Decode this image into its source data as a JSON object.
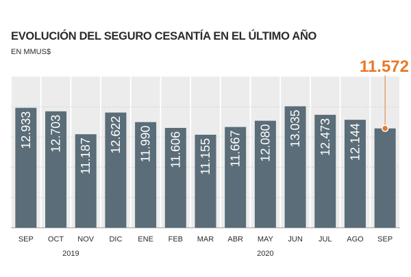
{
  "header": {
    "title": "EVOLUCIÓN DEL SEGURO CESANTÍA EN EL ÚLTIMO AÑO",
    "subtitle": "EN MMUS$"
  },
  "colors": {
    "bar": "#5a6d78",
    "panel": "#ececec",
    "grid": "#bcbcbc",
    "highlight": "#e8792b",
    "text": "#2b2b2b",
    "bar_label": "#ffffff"
  },
  "chart_data": {
    "type": "bar",
    "categories": [
      "SEP",
      "OCT",
      "NOV",
      "DIC",
      "ENE",
      "FEB",
      "MAR",
      "ABR",
      "MAY",
      "JUN",
      "JUL",
      "AGO",
      "SEP"
    ],
    "values": [
      12933,
      12703,
      11187,
      12622,
      11990,
      11606,
      11155,
      11667,
      12080,
      13035,
      12473,
      12144,
      11572
    ],
    "value_labels": [
      "12.933",
      "12.703",
      "11.187",
      "12.622",
      "11.990",
      "11.606",
      "11.155",
      "11.667",
      "12.080",
      "13.035",
      "12.473",
      "12.144",
      "11.572"
    ],
    "year_labels": [
      {
        "label": "2019",
        "from": 0,
        "to": 3
      },
      {
        "label": "2020",
        "from": 4,
        "to": 12
      }
    ],
    "highlight_index": 12,
    "title": "EVOLUCIÓN DEL SEGURO CESANTÍA EN EL ÚLTIMO AÑO",
    "subtitle": "EN MMUS$",
    "xlabel": "",
    "ylabel": "",
    "ylim": [
      5000,
      15000
    ],
    "grid": true
  }
}
